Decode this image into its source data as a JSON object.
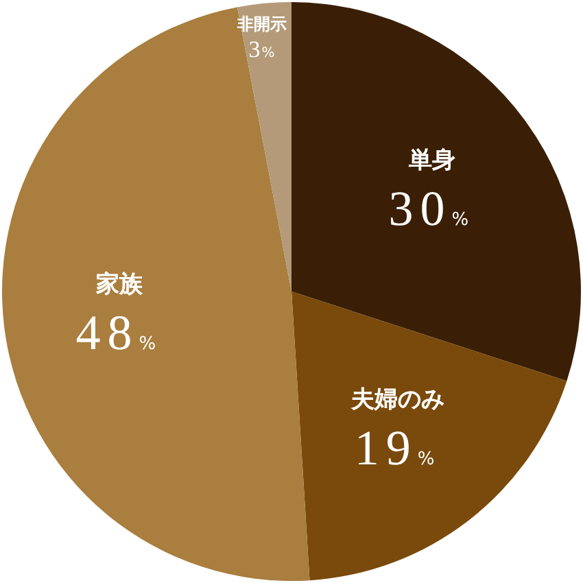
{
  "chart_data": {
    "type": "pie",
    "categories": [
      "単身",
      "夫婦のみ",
      "家族",
      "非開示"
    ],
    "values": [
      30,
      19,
      48,
      3
    ],
    "colors": [
      "#3a1f06",
      "#7a4a0c",
      "#a97e3e",
      "#b49a78"
    ],
    "value_labels": [
      "30%",
      "19%",
      "48%",
      "3%"
    ]
  }
}
